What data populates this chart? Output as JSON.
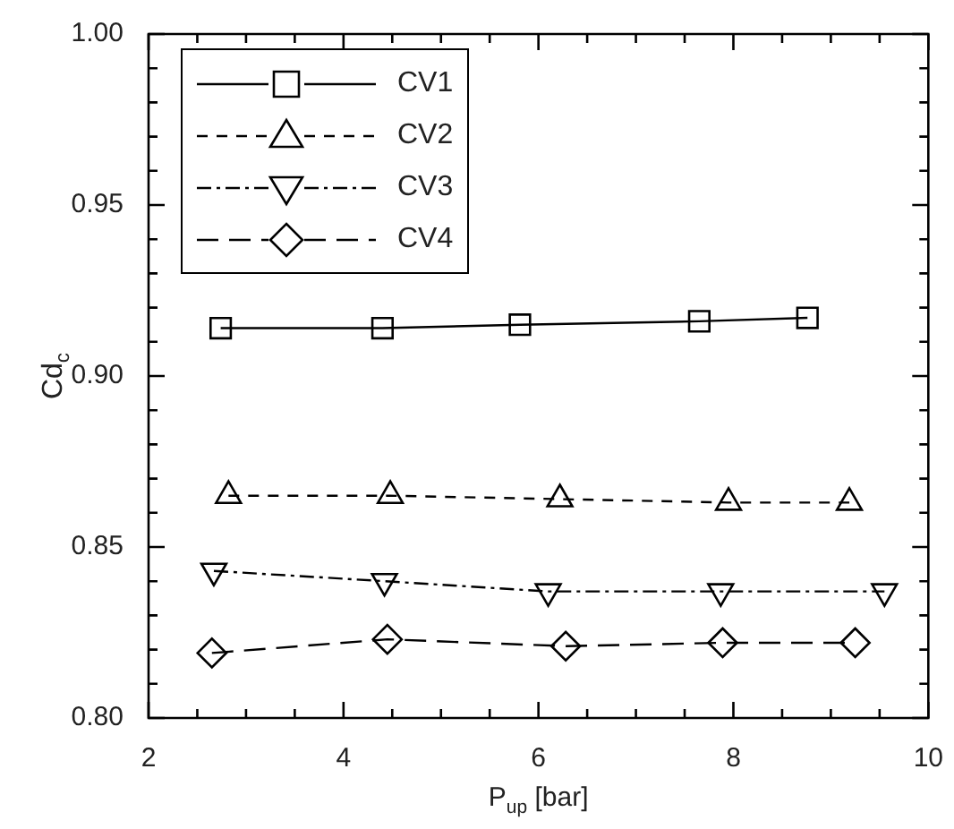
{
  "chart_data": {
    "type": "line",
    "xlabel": "P$_{up}$ [bar]",
    "ylabel": "Cd$_{c}$",
    "xlim": [
      2,
      10
    ],
    "xticks": [
      2,
      {
        "value": 2.5,
        "label": null
      },
      {
        "value": 3,
        "label": null
      },
      {
        "value": 3.5,
        "label": null
      },
      4,
      {
        "value": 4.5,
        "label": null
      },
      {
        "value": 5,
        "label": null
      },
      {
        "value": 5.5,
        "label": null
      },
      6,
      {
        "value": 6.5,
        "label": null
      },
      {
        "value": 7,
        "label": null
      },
      {
        "value": 7.5,
        "label": null
      },
      8,
      {
        "value": 8.5,
        "label": null
      },
      {
        "value": 9,
        "label": null
      },
      {
        "value": 9.5,
        "label": null
      },
      10
    ],
    "ylim": [
      0.8,
      1.0
    ],
    "yticks": [
      {
        "value": 0.8,
        "label": "0.80"
      },
      {
        "value": 0.81,
        "label": null
      },
      {
        "value": 0.82,
        "label": null
      },
      {
        "value": 0.83,
        "label": null
      },
      {
        "value": 0.84,
        "label": null
      },
      {
        "value": 0.85,
        "label": "0.85"
      },
      {
        "value": 0.86,
        "label": null
      },
      {
        "value": 0.87,
        "label": null
      },
      {
        "value": 0.88,
        "label": null
      },
      {
        "value": 0.89,
        "label": null
      },
      {
        "value": 0.9,
        "label": "0.90"
      },
      {
        "value": 0.91,
        "label": null
      },
      {
        "value": 0.92,
        "label": null
      },
      {
        "value": 0.93,
        "label": null
      },
      {
        "value": 0.94,
        "label": null
      },
      {
        "value": 0.95,
        "label": "0.95"
      },
      {
        "value": 0.96,
        "label": null
      },
      {
        "value": 0.97,
        "label": null
      },
      {
        "value": 0.98,
        "label": null
      },
      {
        "value": 0.99,
        "label": null
      },
      {
        "value": 1.0,
        "label": "1.00"
      }
    ],
    "legend": "top left",
    "series": [
      {
        "name": "CV1",
        "color": "#000000",
        "marker": "square",
        "line_style": "solid",
        "x": [
          2.74,
          4.4,
          5.81,
          7.65,
          8.76
        ],
        "values": [
          0.914,
          0.914,
          0.915,
          0.916,
          0.917
        ]
      },
      {
        "name": "CV2",
        "color": "#000000",
        "marker": "triangle",
        "line_style": "dashed",
        "x": [
          2.82,
          4.48,
          6.22,
          7.95,
          9.19
        ],
        "values": [
          0.865,
          0.865,
          0.864,
          0.863,
          0.863
        ]
      },
      {
        "name": "CV3",
        "color": "#000000",
        "marker": "triangle-down",
        "line_style": "dashdot",
        "x": [
          2.67,
          4.42,
          6.1,
          7.87,
          9.55
        ],
        "values": [
          0.843,
          0.84,
          0.837,
          0.837,
          0.837
        ]
      },
      {
        "name": "CV4",
        "color": "#000000",
        "marker": "diamond",
        "line_style": "longdash",
        "x": [
          2.65,
          4.45,
          6.28,
          7.89,
          9.25
        ],
        "values": [
          0.819,
          0.823,
          0.821,
          0.822,
          0.822
        ]
      }
    ]
  }
}
